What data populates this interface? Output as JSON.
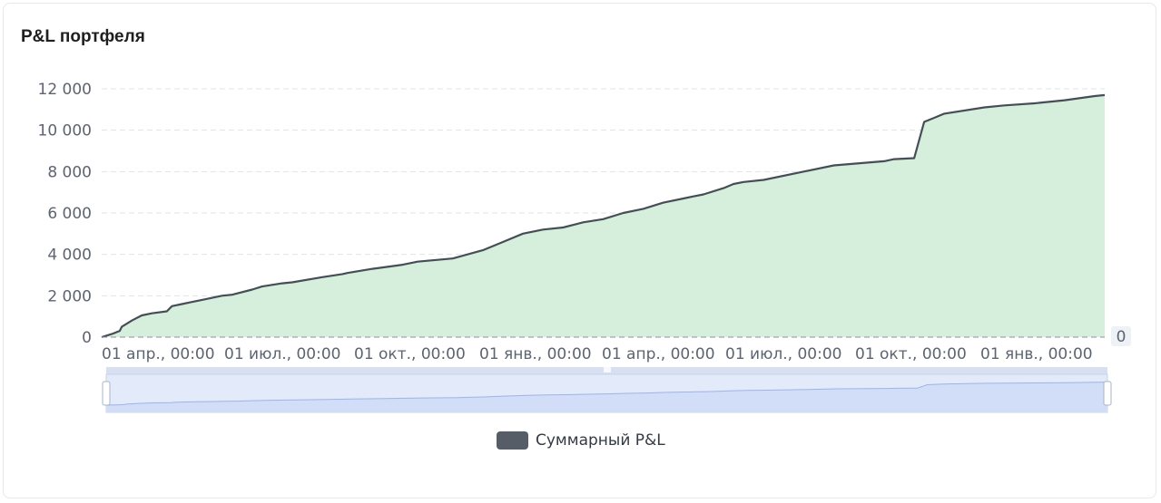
{
  "card": {
    "title": "P&L портфеля"
  },
  "chart_data": {
    "type": "area",
    "title": "P&L портфеля",
    "xlabel": "",
    "ylabel": "",
    "ylim": [
      0,
      12000
    ],
    "y_ticks": [
      "12 000",
      "10 000",
      "8 000",
      "6 000",
      "4 000",
      "2 000",
      "0"
    ],
    "y_tick_values": [
      12000,
      10000,
      8000,
      6000,
      4000,
      2000,
      0
    ],
    "x_ticks": [
      "01 апр., 00:00",
      "01 июл., 00:00",
      "01 окт., 00:00",
      "01 янв., 00:00",
      "01 апр., 00:00",
      "01 июл., 00:00",
      "01 окт., 00:00",
      "01 янв., 00:00"
    ],
    "grid": true,
    "legend": "bottom-center",
    "right_axis_label": "0",
    "series": [
      {
        "name": "Суммарный P&L",
        "line_color": "#474d57",
        "fill_color": "#d6eedc",
        "x": [
          0,
          0.01,
          0.018,
          0.02,
          0.03,
          0.04,
          0.05,
          0.065,
          0.07,
          0.08,
          0.09,
          0.1,
          0.12,
          0.13,
          0.15,
          0.16,
          0.18,
          0.19,
          0.22,
          0.24,
          0.245,
          0.27,
          0.3,
          0.315,
          0.35,
          0.38,
          0.4,
          0.42,
          0.44,
          0.46,
          0.48,
          0.5,
          0.52,
          0.54,
          0.56,
          0.58,
          0.59,
          0.6,
          0.62,
          0.63,
          0.64,
          0.66,
          0.7,
          0.73,
          0.78,
          0.79,
          0.81,
          0.82,
          0.83,
          0.84,
          0.88,
          0.9,
          0.93,
          0.96,
          0.99,
          1.0
        ],
        "values": [
          0,
          150,
          300,
          500,
          800,
          1050,
          1150,
          1250,
          1500,
          1600,
          1700,
          1800,
          2000,
          2050,
          2300,
          2450,
          2600,
          2650,
          2900,
          3050,
          3100,
          3300,
          3500,
          3650,
          3800,
          4200,
          4600,
          5000,
          5200,
          5300,
          5550,
          5700,
          6000,
          6200,
          6500,
          6700,
          6800,
          6900,
          7200,
          7400,
          7500,
          7600,
          8000,
          8300,
          8500,
          8600,
          8650,
          10400,
          10600,
          10800,
          11100,
          11200,
          11300,
          11450,
          11650,
          11700
        ]
      }
    ],
    "zoom_slider": {
      "start_percent": 0,
      "end_percent": 100
    }
  }
}
